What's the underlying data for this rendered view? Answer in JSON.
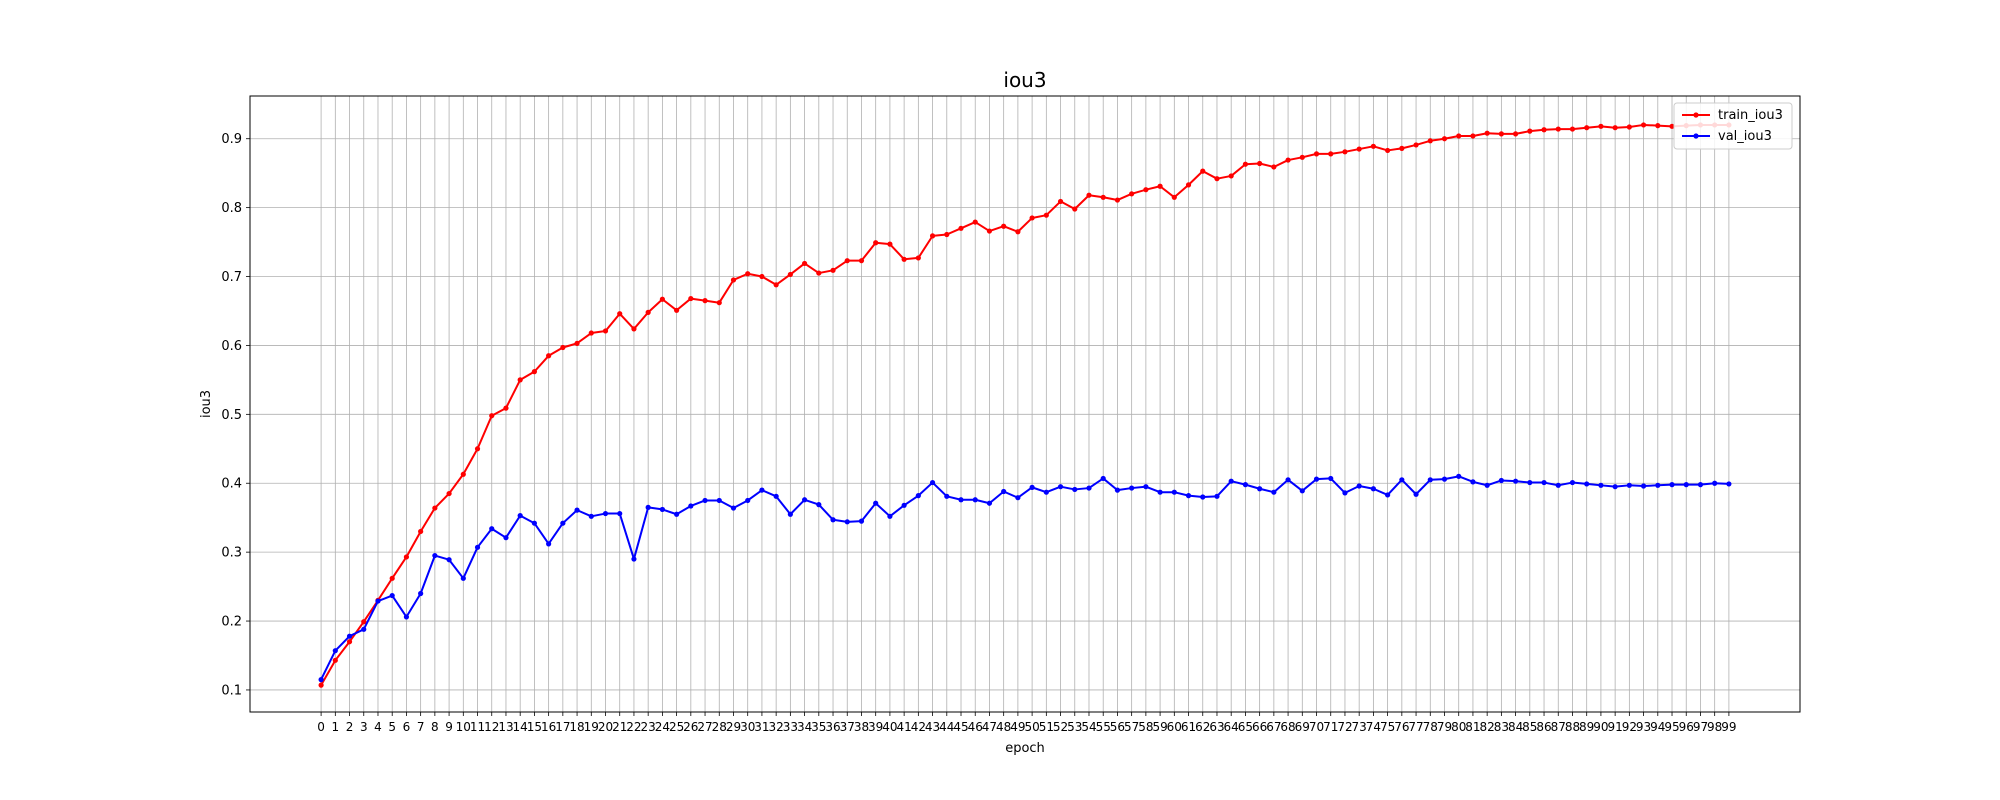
{
  "chart_data": {
    "type": "line",
    "title": "iou3",
    "xlabel": "epoch",
    "ylabel": "iou3",
    "grid": true,
    "legend_position": "top-right",
    "xlim": [
      -5,
      104
    ],
    "ylim": [
      0.068,
      0.962
    ],
    "yticks": [
      0.1,
      0.2,
      0.3,
      0.4,
      0.5,
      0.6,
      0.7,
      0.8,
      0.9
    ],
    "x": [
      0,
      1,
      2,
      3,
      4,
      5,
      6,
      7,
      8,
      9,
      10,
      11,
      12,
      13,
      14,
      15,
      16,
      17,
      18,
      19,
      20,
      21,
      22,
      23,
      24,
      25,
      26,
      27,
      28,
      29,
      30,
      31,
      32,
      33,
      34,
      35,
      36,
      37,
      38,
      39,
      40,
      41,
      42,
      43,
      44,
      45,
      46,
      47,
      48,
      49,
      50,
      51,
      52,
      53,
      54,
      55,
      56,
      57,
      58,
      59,
      60,
      61,
      62,
      63,
      64,
      65,
      66,
      67,
      68,
      69,
      70,
      71,
      72,
      73,
      74,
      75,
      76,
      77,
      78,
      79,
      80,
      81,
      82,
      83,
      84,
      85,
      86,
      87,
      88,
      89,
      90,
      91,
      92,
      93,
      94,
      95,
      96,
      97,
      98,
      99
    ],
    "series": [
      {
        "name": "train_iou3",
        "color": "#ff0000",
        "values": [
          0.107,
          0.143,
          0.17,
          0.199,
          0.23,
          0.262,
          0.293,
          0.33,
          0.364,
          0.385,
          0.413,
          0.45,
          0.498,
          0.509,
          0.55,
          0.562,
          0.585,
          0.597,
          0.603,
          0.618,
          0.621,
          0.646,
          0.624,
          0.648,
          0.667,
          0.651,
          0.668,
          0.665,
          0.662,
          0.695,
          0.704,
          0.7,
          0.688,
          0.703,
          0.719,
          0.705,
          0.709,
          0.723,
          0.723,
          0.749,
          0.747,
          0.725,
          0.727,
          0.759,
          0.761,
          0.77,
          0.779,
          0.766,
          0.773,
          0.765,
          0.785,
          0.789,
          0.809,
          0.798,
          0.818,
          0.815,
          0.811,
          0.82,
          0.826,
          0.831,
          0.815,
          0.833,
          0.853,
          0.842,
          0.846,
          0.863,
          0.864,
          0.859,
          0.869,
          0.873,
          0.878,
          0.878,
          0.881,
          0.885,
          0.889,
          0.883,
          0.886,
          0.891,
          0.897,
          0.9,
          0.904,
          0.904,
          0.908,
          0.907,
          0.907,
          0.911,
          0.913,
          0.914,
          0.914,
          0.916,
          0.918,
          0.916,
          0.917,
          0.92,
          0.919,
          0.918,
          0.919,
          0.92,
          0.92,
          0.92
        ]
      },
      {
        "name": "val_iou3",
        "color": "#0000ff",
        "values": [
          0.115,
          0.157,
          0.178,
          0.188,
          0.229,
          0.237,
          0.206,
          0.24,
          0.295,
          0.289,
          0.262,
          0.307,
          0.334,
          0.321,
          0.353,
          0.342,
          0.312,
          0.342,
          0.361,
          0.352,
          0.356,
          0.356,
          0.29,
          0.365,
          0.362,
          0.355,
          0.367,
          0.375,
          0.375,
          0.364,
          0.375,
          0.39,
          0.381,
          0.355,
          0.376,
          0.369,
          0.347,
          0.344,
          0.345,
          0.371,
          0.352,
          0.368,
          0.382,
          0.401,
          0.381,
          0.376,
          0.376,
          0.371,
          0.388,
          0.379,
          0.394,
          0.387,
          0.395,
          0.391,
          0.393,
          0.407,
          0.39,
          0.393,
          0.395,
          0.387,
          0.387,
          0.382,
          0.38,
          0.381,
          0.403,
          0.398,
          0.392,
          0.387,
          0.405,
          0.389,
          0.406,
          0.407,
          0.386,
          0.396,
          0.392,
          0.383,
          0.405,
          0.384,
          0.405,
          0.406,
          0.41,
          0.402,
          0.397,
          0.404,
          0.403,
          0.401,
          0.401,
          0.397,
          0.401,
          0.399,
          0.397,
          0.395,
          0.397,
          0.396,
          0.397,
          0.398,
          0.398,
          0.398,
          0.4,
          0.399
        ]
      }
    ]
  }
}
